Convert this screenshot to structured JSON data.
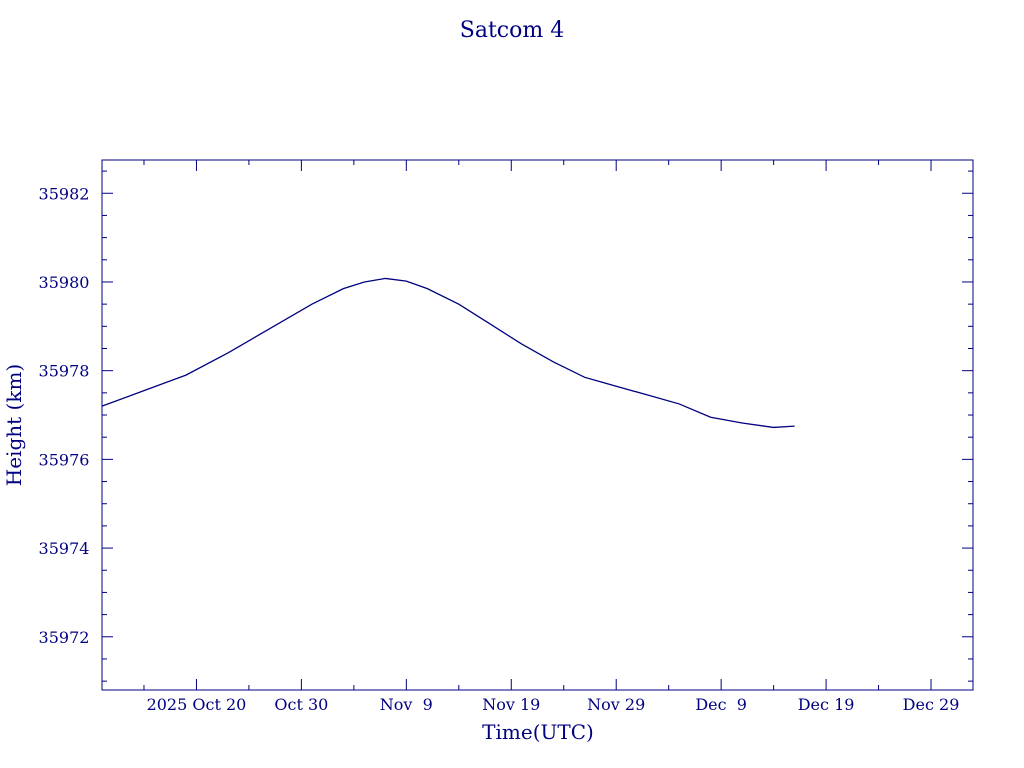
{
  "chart_data": {
    "type": "line",
    "title": "Satcom 4",
    "xlabel": "Time(UTC)",
    "ylabel": "Height (km)",
    "colors": {
      "line": "#000080",
      "axes": "#000080",
      "text": "#000080"
    },
    "grid": false,
    "legend": "none",
    "xlim": [
      "2025-10-11",
      "2026-01-02"
    ],
    "ylim": [
      35970.8,
      35982.75
    ],
    "x_ticks": [
      {
        "date": "2025-10-20",
        "label": "2025 Oct 20"
      },
      {
        "date": "2025-10-30",
        "label": "Oct 30"
      },
      {
        "date": "2025-11-09",
        "label": "Nov  9"
      },
      {
        "date": "2025-11-19",
        "label": "Nov 19"
      },
      {
        "date": "2025-11-29",
        "label": "Nov 29"
      },
      {
        "date": "2025-12-09",
        "label": "Dec  9"
      },
      {
        "date": "2025-12-19",
        "label": "Dec 19"
      },
      {
        "date": "2025-12-29",
        "label": "Dec 29"
      }
    ],
    "y_ticks": [
      {
        "value": 35972,
        "label": "35972"
      },
      {
        "value": 35974,
        "label": "35974"
      },
      {
        "value": 35976,
        "label": "35976"
      },
      {
        "value": 35978,
        "label": "35978"
      },
      {
        "value": 35980,
        "label": "35980"
      },
      {
        "value": 35982,
        "label": "35982"
      }
    ],
    "series": [
      {
        "points": [
          [
            "2025-10-11",
            35977.2
          ],
          [
            "2025-10-15",
            35977.55
          ],
          [
            "2025-10-19",
            35977.9
          ],
          [
            "2025-10-23",
            35978.4
          ],
          [
            "2025-10-27",
            35978.95
          ],
          [
            "2025-10-31",
            35979.5
          ],
          [
            "2025-11-03",
            35979.85
          ],
          [
            "2025-11-05",
            35980.0
          ],
          [
            "2025-11-07",
            35980.08
          ],
          [
            "2025-11-09",
            35980.02
          ],
          [
            "2025-11-11",
            35979.85
          ],
          [
            "2025-11-14",
            35979.5
          ],
          [
            "2025-11-17",
            35979.05
          ],
          [
            "2025-11-20",
            35978.6
          ],
          [
            "2025-11-23",
            35978.2
          ],
          [
            "2025-11-26",
            35977.85
          ],
          [
            "2025-11-29",
            35977.65
          ],
          [
            "2025-12-02",
            35977.45
          ],
          [
            "2025-12-05",
            35977.25
          ],
          [
            "2025-12-08",
            35976.95
          ],
          [
            "2025-12-11",
            35976.82
          ],
          [
            "2025-12-14",
            35976.72
          ],
          [
            "2025-12-16",
            35976.75
          ]
        ]
      }
    ]
  }
}
